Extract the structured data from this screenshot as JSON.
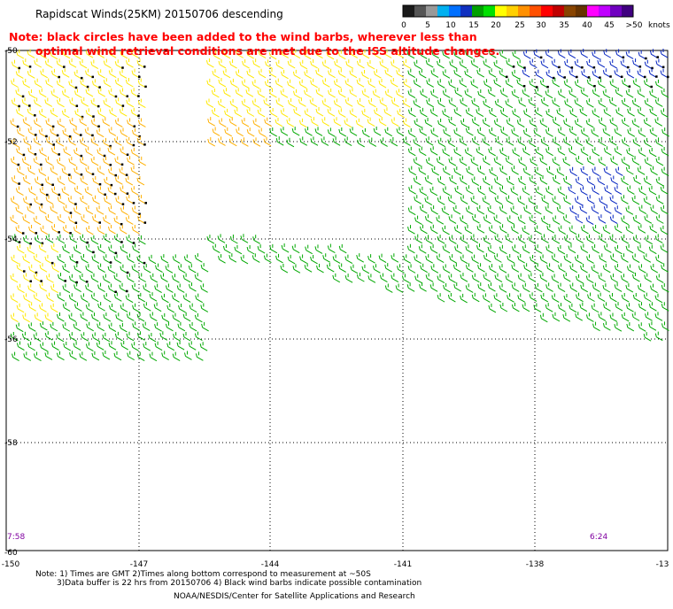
{
  "title": "Rapidscat Winds(25KM) 20150706 descending",
  "legend": {
    "labels": [
      "0",
      "5",
      "10",
      "15",
      "20",
      "25",
      "30",
      "35",
      "40",
      "45",
      ">50"
    ],
    "unit": "knots",
    "colors": [
      "#1a1a1a",
      "#555555",
      "#999999",
      "#00b0f0",
      "#0070ff",
      "#1030c0",
      "#00a000",
      "#00e000",
      "#ffff00",
      "#ffd000",
      "#ff9000",
      "#ff5000",
      "#ff0000",
      "#c00000",
      "#884400",
      "#663300",
      "#ff00ff",
      "#c000ff",
      "#7000c0",
      "#400080"
    ]
  },
  "note": {
    "line1": "Note: black circles have been added to the wind barbs, wherever less than",
    "line2": "optimal wind retrieval conditions are met due to the ISS altitude changes."
  },
  "axes": {
    "lat_labels": [
      "-50",
      "-52",
      "-54",
      "-56",
      "-58",
      "-60"
    ],
    "lon_labels": [
      "-150",
      "-147",
      "-144",
      "-141",
      "-138",
      "-13"
    ]
  },
  "times": {
    "left": "7:58",
    "right": "6:24"
  },
  "footer": {
    "line1": "Note: 1) Times are GMT 2)Times along bottom correspond to measurement at ~50S",
    "line2": "3)Data buffer is 22 hrs from 20150706 4) Black wind barbs indicate possible contamination",
    "line3": "NOAA/NESDIS/Center for Satellite Applications and Research"
  },
  "colors": {
    "speed_yellow": "#ffe800",
    "speed_orange": "#ffb000",
    "speed_green": "#00a800",
    "speed_lightgreen": "#30c030",
    "speed_blue": "#0020c0",
    "note_red": "#ff0000",
    "time_purple": "#8000a0",
    "flag_black": "#000000"
  }
}
